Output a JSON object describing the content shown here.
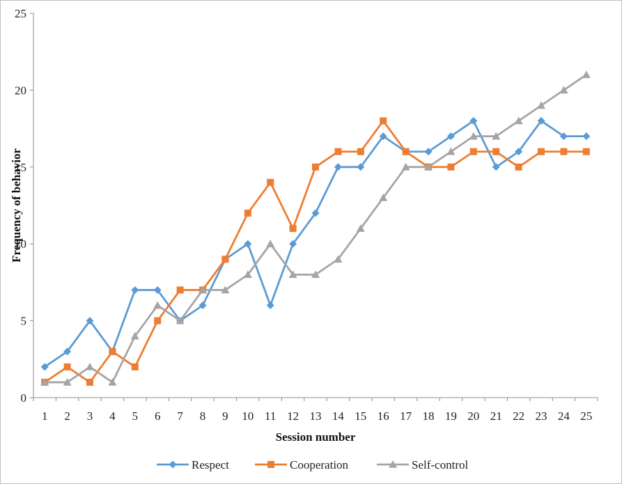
{
  "chart_data": {
    "type": "line",
    "title": "",
    "xlabel": "Session number",
    "ylabel": "Frequency of behavior",
    "ylim": [
      0,
      25
    ],
    "y_ticks": [
      0,
      5,
      10,
      15,
      20,
      25
    ],
    "grid": false,
    "legend_position": "bottom",
    "categories": [
      "1",
      "2",
      "3",
      "4",
      "5",
      "6",
      "7",
      "8",
      "9",
      "10",
      "11",
      "12",
      "13",
      "14",
      "15",
      "16",
      "17",
      "18",
      "19",
      "20",
      "21",
      "22",
      "23",
      "24",
      "25"
    ],
    "series": [
      {
        "name": "Respect",
        "color": "#5b9bd5",
        "marker": "diamond",
        "values": [
          2,
          3,
          5,
          3,
          7,
          7,
          5,
          6,
          9,
          10,
          6,
          10,
          12,
          15,
          15,
          17,
          16,
          16,
          17,
          18,
          15,
          16,
          18,
          17,
          17
        ]
      },
      {
        "name": "Cooperation",
        "color": "#ed7d31",
        "marker": "square",
        "values": [
          1,
          2,
          1,
          3,
          2,
          5,
          7,
          7,
          9,
          12,
          14,
          11,
          15,
          16,
          16,
          18,
          16,
          15,
          15,
          16,
          16,
          15,
          16,
          16,
          16
        ]
      },
      {
        "name": "Self-control",
        "color": "#a5a5a5",
        "marker": "triangle",
        "values": [
          1,
          1,
          2,
          1,
          4,
          6,
          5,
          7,
          7,
          8,
          10,
          8,
          8,
          9,
          11,
          13,
          15,
          15,
          16,
          17,
          17,
          18,
          19,
          20,
          21
        ]
      }
    ]
  }
}
